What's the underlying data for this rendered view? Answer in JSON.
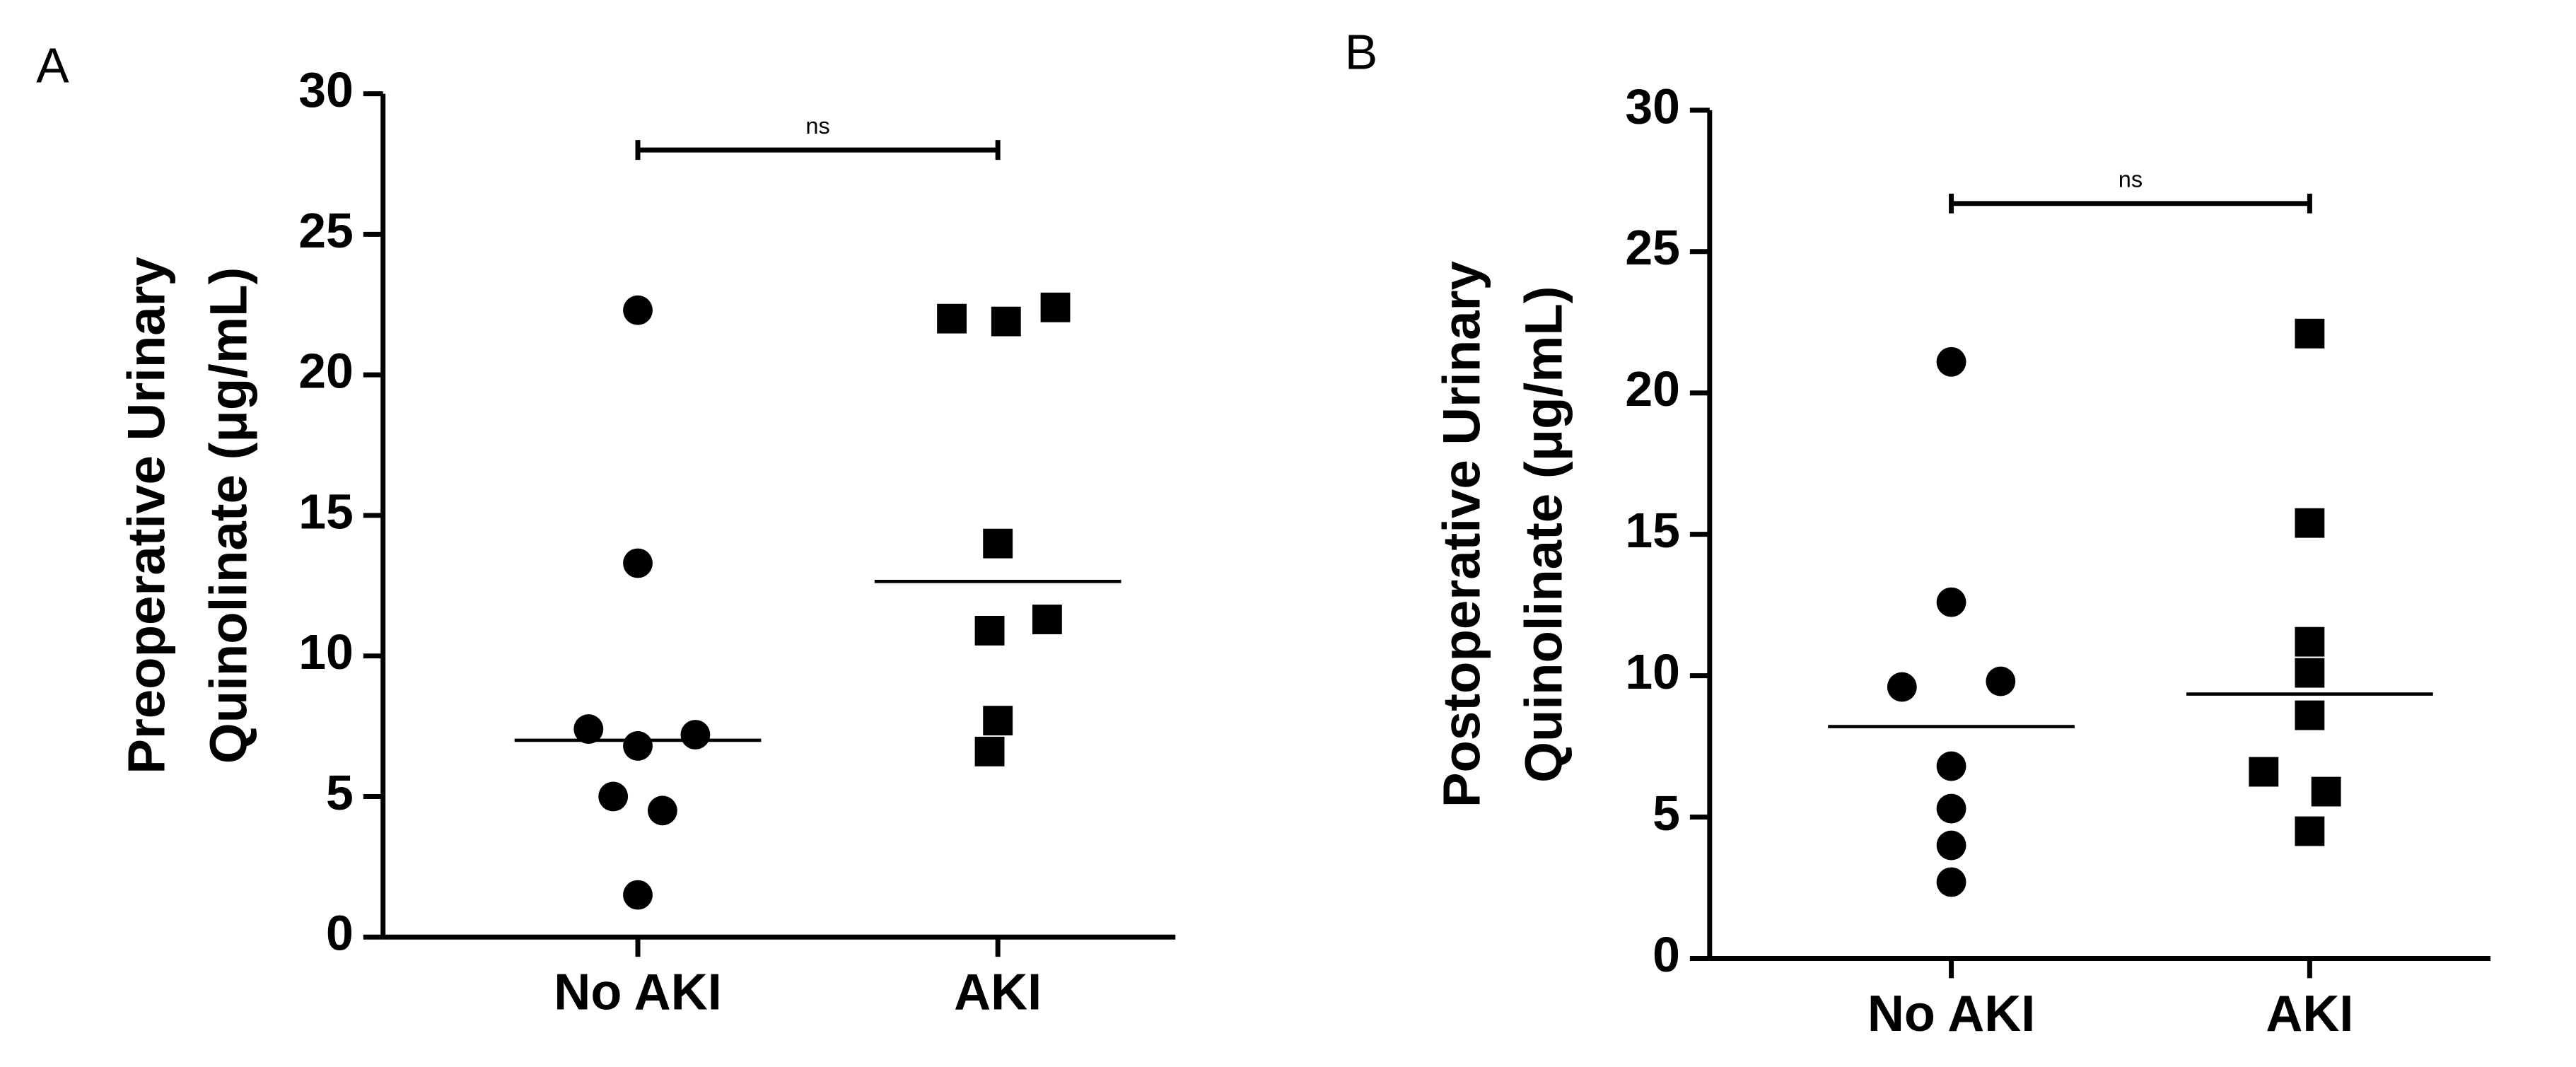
{
  "chart_data": [
    {
      "type": "dot",
      "panel": "A",
      "ylabel": [
        "Preoperative Urinary",
        "Quinolinate (μg/mL)"
      ],
      "categories": [
        "No AKI",
        "AKI"
      ],
      "groups": [
        {
          "marker": "circle",
          "values": [
            22.3,
            13.3,
            7.4,
            6.8,
            7.2,
            5.0,
            4.5,
            1.5
          ],
          "center": 7.0
        },
        {
          "marker": "square",
          "values": [
            22.0,
            21.9,
            22.4,
            14.0,
            10.9,
            11.3,
            7.7,
            6.6
          ],
          "center": 12.65
        }
      ],
      "ylim": [
        0,
        30
      ],
      "yticks": [
        0,
        5,
        10,
        15,
        20,
        25,
        30
      ],
      "bracket": {
        "value": 28,
        "label": "ns"
      }
    },
    {
      "type": "dot",
      "panel": "B",
      "ylabel": [
        "Postoperative Urinary",
        "Quinolinate (μg/mL)"
      ],
      "categories": [
        "No AKI",
        "AKI"
      ],
      "groups": [
        {
          "marker": "circle",
          "values": [
            21.1,
            12.6,
            9.6,
            9.8,
            6.8,
            5.3,
            4.0,
            2.7
          ],
          "center": 8.2
        },
        {
          "marker": "square",
          "values": [
            22.1,
            15.4,
            11.2,
            10.1,
            8.6,
            6.6,
            5.9,
            4.5
          ],
          "center": 9.35
        }
      ],
      "ylim": [
        0,
        30
      ],
      "yticks": [
        0,
        5,
        10,
        15,
        20,
        25,
        30
      ],
      "bracket": {
        "value": 26.7,
        "label": "ns"
      }
    }
  ]
}
